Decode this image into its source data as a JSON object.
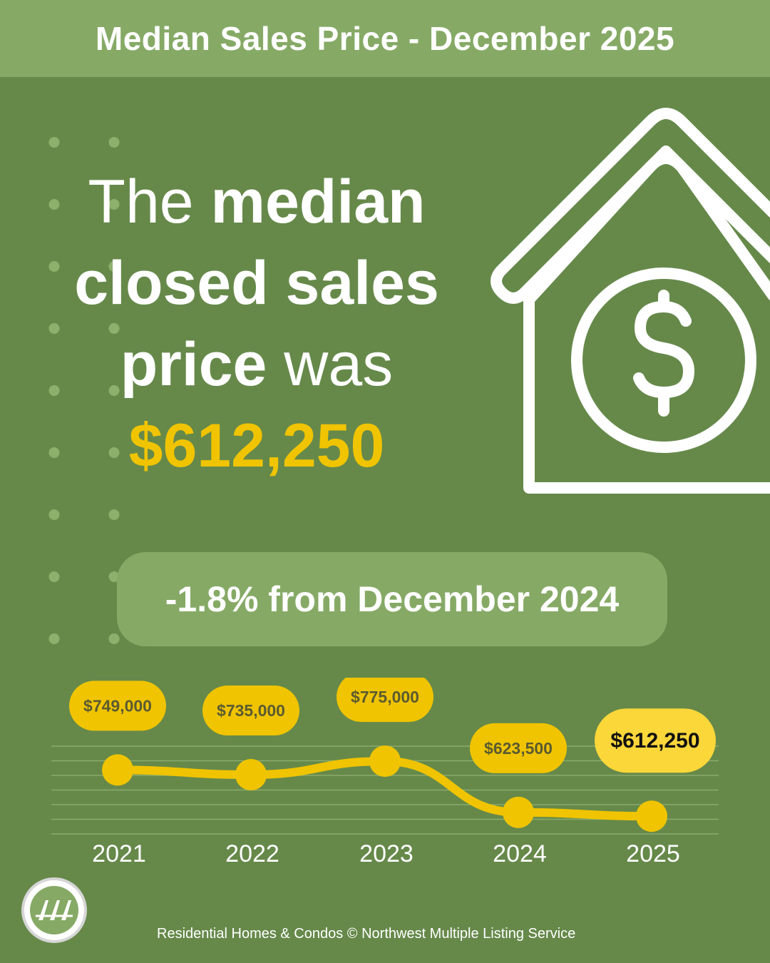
{
  "header": {
    "title": "Median Sales Price - December 2025"
  },
  "headline": {
    "part1": "The ",
    "part2": "median",
    "part3": "closed sales",
    "part4": "price",
    "part5": " was",
    "price": "$612,250"
  },
  "change_badge": {
    "text": "-1.8% from December 2024"
  },
  "footer": {
    "text": "Residential Homes & Condos © Northwest Multiple Listing Service"
  },
  "colors": {
    "background": "#66894a",
    "header_bg": "#86aa66",
    "accent_yellow": "#f0c400",
    "highlight_yellow": "#fcd73a",
    "white": "#ffffff"
  },
  "icons": [
    "house-dollar-icon",
    "nwmls-logo"
  ],
  "chart_data": {
    "type": "line",
    "categories": [
      "2021",
      "2022",
      "2023",
      "2024",
      "2025"
    ],
    "values": [
      749000,
      735000,
      775000,
      623500,
      612250
    ],
    "value_labels": [
      "$749,000",
      "$735,000",
      "$775,000",
      "$623,500",
      "$612,250"
    ],
    "highlight_index": 4,
    "grid": true,
    "legend": "none"
  }
}
